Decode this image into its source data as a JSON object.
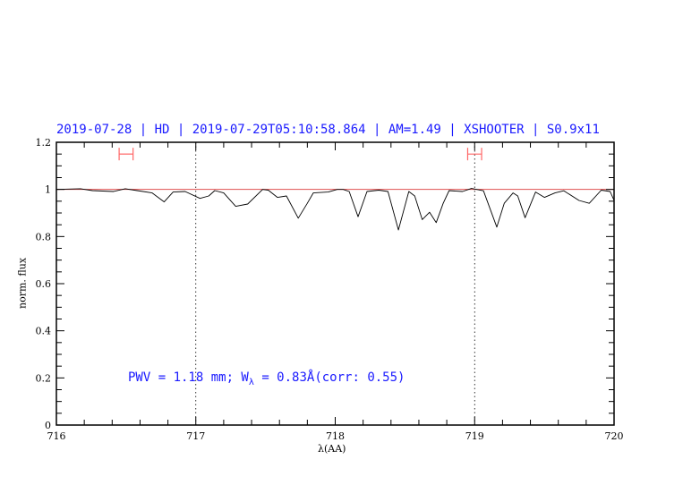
{
  "chart_data": {
    "type": "line",
    "title": "2019-07-28 | HD | 2019-07-29T05:10:58.864 | AM=1.49 | XSHOOTER | S0.9x11",
    "xlabel": "λ(AA)",
    "ylabel": "norm. flux",
    "xlim": [
      716,
      720
    ],
    "ylim": [
      0,
      1.2
    ],
    "xticks": [
      "716",
      "717",
      "718",
      "719",
      "720"
    ],
    "yticks": [
      "0",
      "0.2",
      "0.4",
      "0.6",
      "0.8",
      "1",
      "1.2"
    ],
    "grid": false,
    "vertical_dotted_lines": [
      717,
      719
    ],
    "reference_line": {
      "y": 1.0,
      "color": "#e05050"
    },
    "error_bars": [
      {
        "x_range": [
          716.45,
          716.55
        ],
        "y": 1.15,
        "color": "#ff6666"
      },
      {
        "x_range": [
          718.95,
          719.05
        ],
        "y": 1.15,
        "color": "#ff6666"
      }
    ],
    "series": [
      {
        "color": "#000000",
        "x": [
          716.0,
          716.173,
          716.259,
          716.409,
          716.494,
          716.58,
          716.687,
          716.773,
          716.837,
          716.923,
          717.03,
          717.093,
          717.136,
          717.2,
          717.286,
          717.372,
          717.479,
          717.52,
          717.586,
          717.65,
          717.735,
          717.8,
          717.843,
          717.95,
          718.014,
          718.057,
          718.1,
          718.164,
          718.228,
          718.313,
          718.378,
          718.453,
          718.528,
          718.57,
          718.624,
          718.677,
          718.724,
          718.774,
          718.817,
          718.913,
          718.977,
          719.063,
          719.159,
          719.212,
          719.276,
          719.309,
          719.362,
          719.437,
          719.501,
          719.576,
          719.64,
          719.748,
          719.822,
          719.908,
          719.972,
          720.0
        ],
        "y": [
          1.0,
          1.003,
          0.995,
          0.991,
          1.003,
          0.995,
          0.985,
          0.947,
          0.989,
          0.991,
          0.962,
          0.972,
          0.995,
          0.985,
          0.928,
          0.938,
          1.0,
          0.997,
          0.966,
          0.972,
          0.878,
          0.941,
          0.985,
          0.989,
          1.0,
          1.0,
          0.991,
          0.884,
          0.991,
          0.997,
          0.991,
          0.828,
          0.991,
          0.972,
          0.872,
          0.903,
          0.859,
          0.941,
          0.995,
          0.991,
          1.004,
          0.994,
          0.84,
          0.941,
          0.985,
          0.972,
          0.88,
          0.989,
          0.966,
          0.985,
          0.994,
          0.953,
          0.941,
          0.997,
          0.991,
          0.953
        ]
      }
    ],
    "annotation": {
      "prefix": "PWV = 1.18 mm; W",
      "subscript": "λ",
      "suffix": " = 0.83Å(corr: 0.55)",
      "color": "#1a1aff"
    }
  }
}
